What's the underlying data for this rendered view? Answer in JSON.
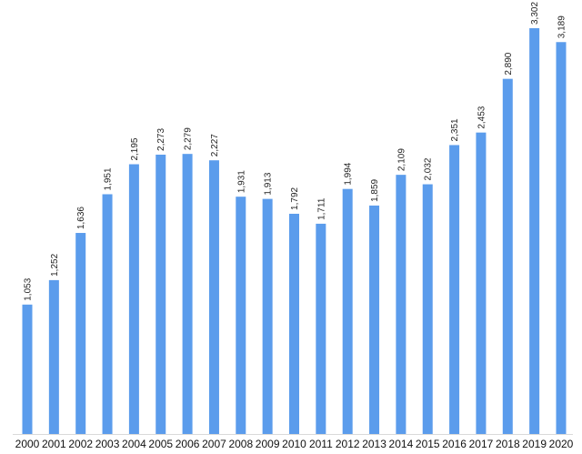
{
  "chart_data": {
    "type": "bar",
    "title": "",
    "xlabel": "",
    "ylabel": "",
    "categories": [
      "2000",
      "2001",
      "2002",
      "2003",
      "2004",
      "2005",
      "2006",
      "2007",
      "2008",
      "2009",
      "2010",
      "2011",
      "2012",
      "2013",
      "2014",
      "2015",
      "2016",
      "2017",
      "2018",
      "2019",
      "2020"
    ],
    "values": [
      1053,
      1252,
      1636,
      1951,
      2195,
      2273,
      2279,
      2227,
      1931,
      1913,
      1792,
      1711,
      1994,
      1859,
      2109,
      2032,
      2351,
      2453,
      2890,
      3302,
      3189
    ],
    "value_labels": [
      "1,053",
      "1,252",
      "1,636",
      "1,951",
      "2,195",
      "2,273",
      "2,279",
      "2,227",
      "1,931",
      "1,913",
      "1,792",
      "1,711",
      "1,994",
      "1,859",
      "2,109",
      "2,032",
      "2,351",
      "2,453",
      "2,890",
      "3,302",
      "3,189"
    ],
    "ylim": [
      0,
      3302
    ],
    "grid": false,
    "legend": "none",
    "bar_color": "#5b9cec"
  }
}
